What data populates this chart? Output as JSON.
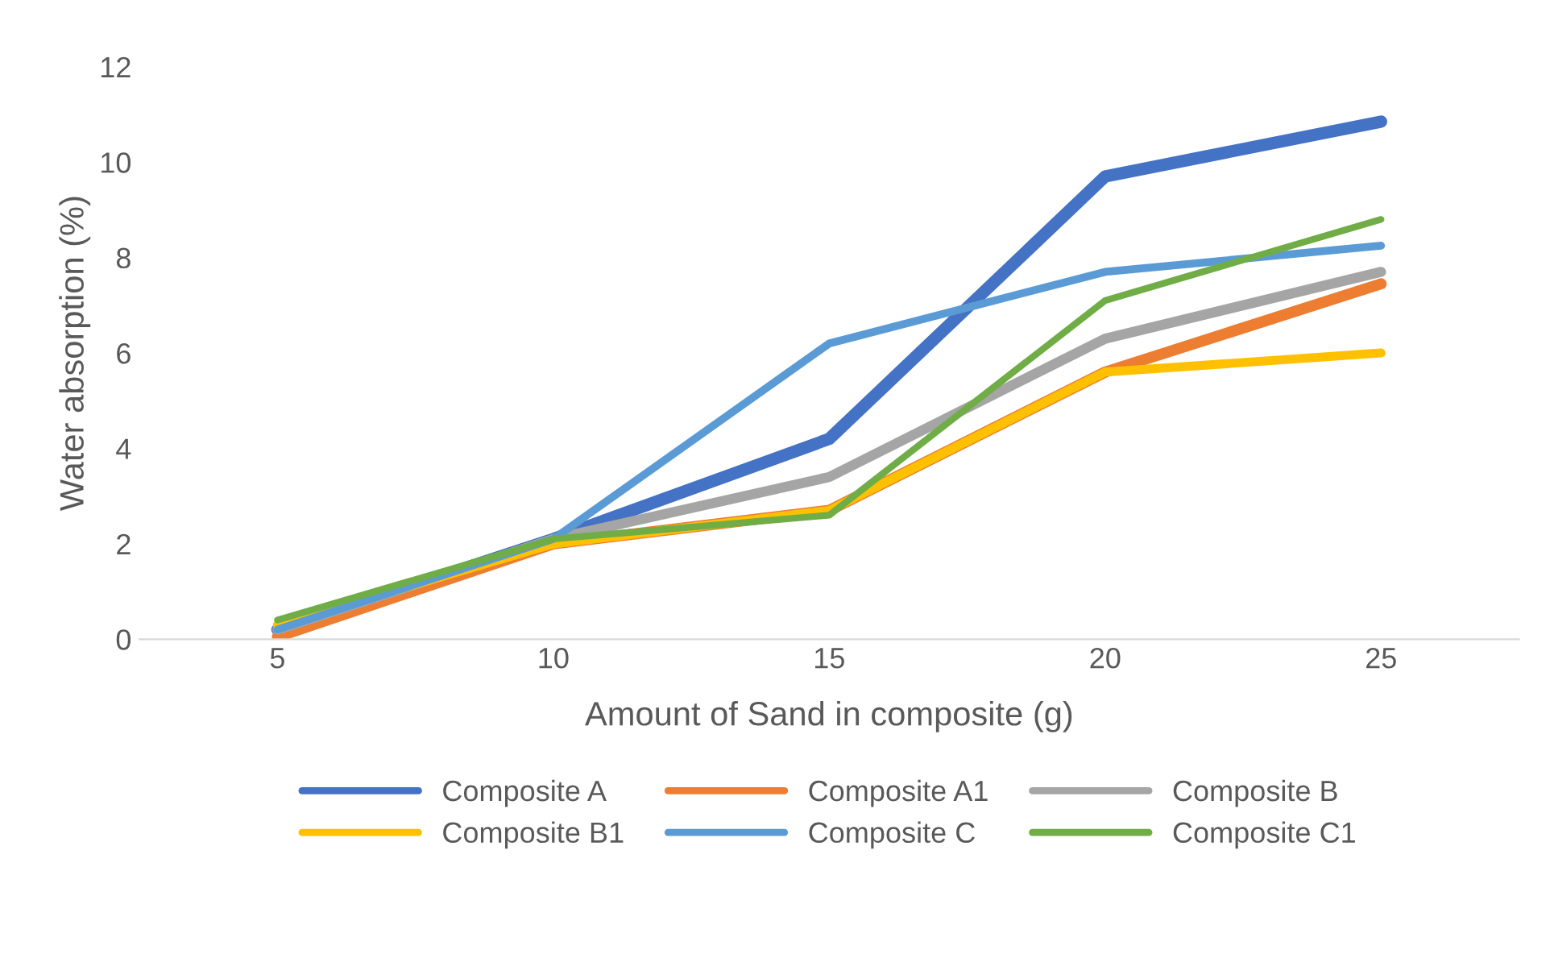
{
  "chart_data": {
    "type": "line",
    "xlabel": "Amount of Sand in composite (g)",
    "ylabel": "Water absorption (%)",
    "categories": [
      "5",
      "10",
      "15",
      "20",
      "25"
    ],
    "ylim": [
      0,
      12
    ],
    "yticks": [
      0,
      2,
      4,
      6,
      8,
      10,
      12
    ],
    "grid": false,
    "legend": "bottom",
    "marker": "none",
    "line_style": "solid",
    "series": [
      {
        "name": "Composite A",
        "color": "#4472c4",
        "values": [
          0.2,
          2.1,
          4.2,
          9.7,
          10.85
        ]
      },
      {
        "name": "Composite A1",
        "color": "#ed7d31",
        "values": [
          0.05,
          2.0,
          2.7,
          5.6,
          7.45
        ]
      },
      {
        "name": "Composite B",
        "color": "#a5a5a5",
        "values": [
          0.2,
          2.1,
          3.4,
          6.3,
          7.7
        ]
      },
      {
        "name": "Composite B1",
        "color": "#ffc000",
        "values": [
          0.3,
          2.0,
          2.7,
          5.6,
          6.0
        ]
      },
      {
        "name": "Composite C",
        "color": "#5b9bd5",
        "values": [
          0.2,
          2.1,
          6.2,
          7.7,
          8.25
        ]
      },
      {
        "name": "Composite C1",
        "color": "#70ad47",
        "values": [
          0.4,
          2.1,
          2.6,
          7.1,
          8.8
        ]
      }
    ]
  }
}
